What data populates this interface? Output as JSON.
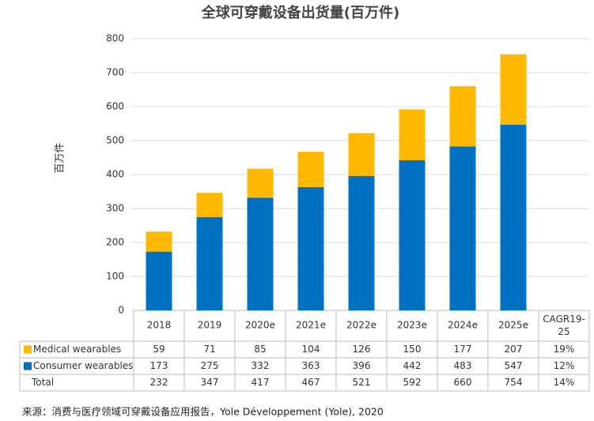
{
  "chart_data": {
    "type": "bar",
    "stacked": true,
    "title": "全球可穿戴设备出货量(百万件)",
    "y_label": "百万件",
    "categories": [
      "2018",
      "2019",
      "2020e",
      "2021e",
      "2022e",
      "2023e",
      "2024e",
      "2025e"
    ],
    "series": [
      {
        "name": "Medical wearables",
        "color": "#ffb800",
        "values": [
          59,
          71,
          85,
          104,
          126,
          150,
          177,
          207
        ],
        "cagr": "19%"
      },
      {
        "name": "Consumer wearables",
        "color": "#0070c0",
        "values": [
          173,
          275,
          332,
          363,
          396,
          442,
          483,
          547
        ],
        "cagr": "12%"
      }
    ],
    "total": {
      "name": "Total",
      "values": [
        232,
        347,
        417,
        467,
        521,
        592,
        660,
        754
      ],
      "cagr": "14%"
    },
    "cagr_header": "CAGR19-25",
    "ylim": [
      0,
      800
    ],
    "yticks": [
      0,
      100,
      200,
      300,
      400,
      500,
      600,
      700,
      800
    ],
    "grid": true,
    "source": "来源：消费与医疗领域可穿戴设备应用报告，Yole Développement (Yole), 2020"
  }
}
